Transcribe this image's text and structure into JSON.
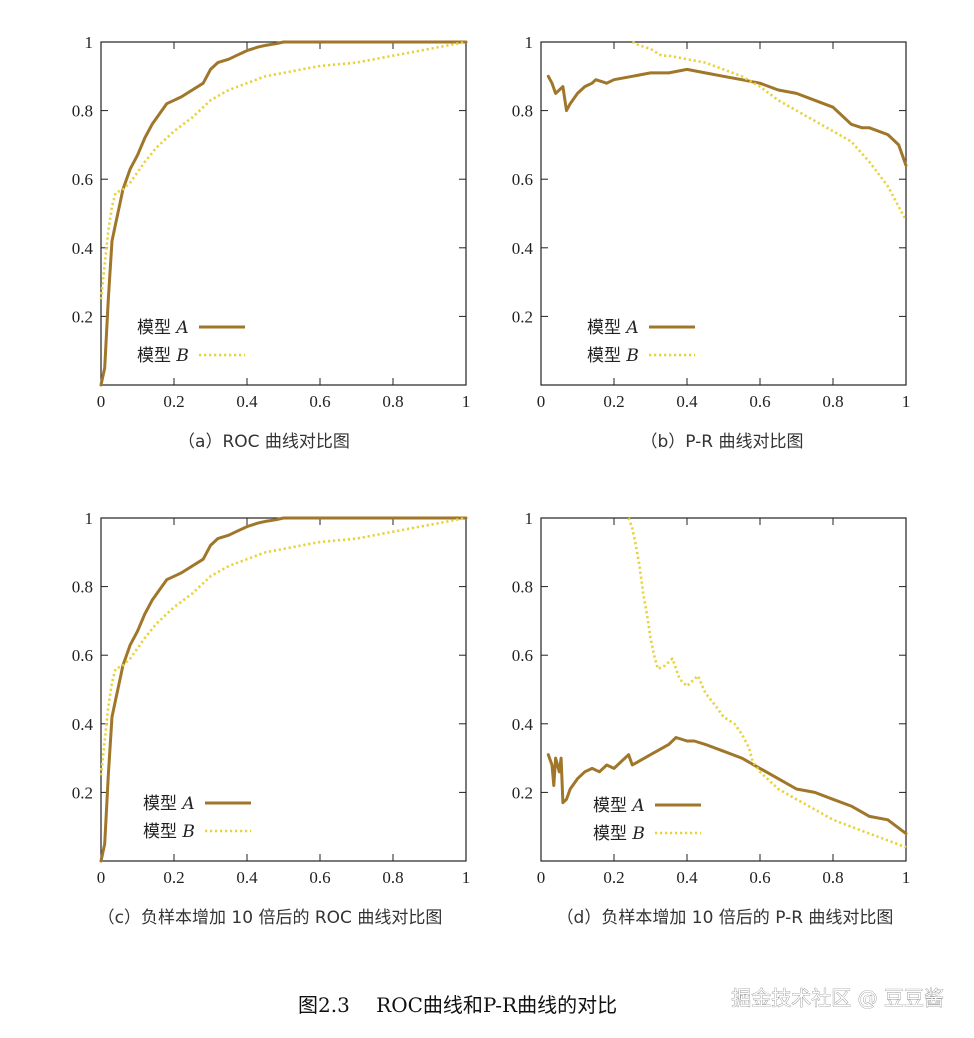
{
  "figure_caption": "图2.3　 ROC曲线和P-R曲线的对比",
  "watermark": "掘金技术社区 @ 豆豆酱",
  "colors": {
    "model_a": "#a0762a",
    "model_b": "#e8d23a",
    "axis": "#222222"
  },
  "chart_data": [
    {
      "type": "line",
      "caption": "（a）ROC 曲线对比图",
      "xlim": [
        0,
        1
      ],
      "ylim": [
        0,
        1
      ],
      "xticks": [
        "0",
        "0.2",
        "0.4",
        "0.6",
        "0.8",
        "1"
      ],
      "yticks": [
        "0.2",
        "0.4",
        "0.6",
        "0.8",
        "1"
      ],
      "legend": {
        "placement": "bottom-left",
        "a_prefix": "模型",
        "a_label": "A",
        "b_prefix": "模型",
        "b_label": "B"
      },
      "series": [
        {
          "name": "模型 A",
          "style": "solid",
          "x": [
            0,
            0.01,
            0.02,
            0.03,
            0.04,
            0.05,
            0.06,
            0.08,
            0.1,
            0.12,
            0.14,
            0.16,
            0.18,
            0.2,
            0.22,
            0.25,
            0.28,
            0.3,
            0.32,
            0.35,
            0.37,
            0.4,
            0.43,
            0.45,
            0.48,
            0.5,
            0.55,
            0.6,
            0.7,
            0.8,
            0.9,
            1.0
          ],
          "y": [
            0,
            0.05,
            0.25,
            0.42,
            0.47,
            0.52,
            0.57,
            0.63,
            0.67,
            0.72,
            0.76,
            0.79,
            0.82,
            0.83,
            0.84,
            0.86,
            0.88,
            0.92,
            0.94,
            0.95,
            0.96,
            0.975,
            0.985,
            0.99,
            0.995,
            1,
            1,
            1,
            1,
            1,
            1,
            1
          ]
        },
        {
          "name": "模型 B",
          "style": "dotted",
          "x": [
            0,
            0.01,
            0.02,
            0.03,
            0.04,
            0.06,
            0.08,
            0.1,
            0.12,
            0.15,
            0.18,
            0.2,
            0.25,
            0.3,
            0.35,
            0.4,
            0.45,
            0.5,
            0.55,
            0.6,
            0.7,
            0.8,
            0.9,
            0.95,
            1.0
          ],
          "y": [
            0.25,
            0.35,
            0.45,
            0.52,
            0.56,
            0.57,
            0.59,
            0.62,
            0.65,
            0.69,
            0.72,
            0.74,
            0.78,
            0.83,
            0.86,
            0.88,
            0.9,
            0.91,
            0.92,
            0.93,
            0.94,
            0.96,
            0.98,
            0.99,
            1
          ]
        }
      ]
    },
    {
      "type": "line",
      "caption": "（b）P-R 曲线对比图",
      "xlim": [
        0,
        1
      ],
      "ylim": [
        0,
        1
      ],
      "xticks": [
        "0",
        "0.2",
        "0.4",
        "0.6",
        "0.8",
        "1"
      ],
      "yticks": [
        "0.2",
        "0.4",
        "0.6",
        "0.8",
        "1"
      ],
      "legend": {
        "placement": "bottom-left",
        "a_prefix": "模型",
        "a_label": "A",
        "b_prefix": "模型",
        "b_label": "B"
      },
      "series": [
        {
          "name": "模型 A",
          "style": "solid",
          "x": [
            0.02,
            0.03,
            0.04,
            0.05,
            0.06,
            0.07,
            0.08,
            0.1,
            0.12,
            0.14,
            0.15,
            0.18,
            0.2,
            0.25,
            0.3,
            0.35,
            0.4,
            0.45,
            0.5,
            0.55,
            0.6,
            0.65,
            0.7,
            0.75,
            0.8,
            0.82,
            0.85,
            0.88,
            0.9,
            0.95,
            0.98,
            1.0
          ],
          "y": [
            0.9,
            0.88,
            0.85,
            0.86,
            0.87,
            0.8,
            0.82,
            0.85,
            0.87,
            0.88,
            0.89,
            0.88,
            0.89,
            0.9,
            0.91,
            0.91,
            0.92,
            0.91,
            0.9,
            0.89,
            0.88,
            0.86,
            0.85,
            0.83,
            0.81,
            0.79,
            0.76,
            0.75,
            0.75,
            0.73,
            0.7,
            0.64
          ]
        },
        {
          "name": "模型 B",
          "style": "dotted",
          "x": [
            0.25,
            0.27,
            0.3,
            0.33,
            0.35,
            0.4,
            0.45,
            0.5,
            0.55,
            0.6,
            0.65,
            0.7,
            0.75,
            0.8,
            0.85,
            0.9,
            0.95,
            1.0
          ],
          "y": [
            1.0,
            0.99,
            0.98,
            0.96,
            0.96,
            0.95,
            0.94,
            0.92,
            0.9,
            0.87,
            0.83,
            0.8,
            0.77,
            0.74,
            0.71,
            0.65,
            0.58,
            0.48
          ]
        }
      ]
    },
    {
      "type": "line",
      "caption": "（c）负样本增加 10 倍后的 ROC 曲线对比图",
      "xlim": [
        0,
        1
      ],
      "ylim": [
        0,
        1
      ],
      "xticks": [
        "0",
        "0.2",
        "0.4",
        "0.6",
        "0.8",
        "1"
      ],
      "yticks": [
        "0.2",
        "0.4",
        "0.6",
        "0.8",
        "1"
      ],
      "legend": {
        "placement": "bottom-left",
        "a_prefix": "模型",
        "a_label": "A",
        "b_prefix": "模型",
        "b_label": "B"
      },
      "series": [
        {
          "name": "模型 A",
          "style": "solid",
          "x": [
            0,
            0.01,
            0.02,
            0.03,
            0.04,
            0.05,
            0.06,
            0.08,
            0.1,
            0.12,
            0.14,
            0.16,
            0.18,
            0.2,
            0.22,
            0.25,
            0.28,
            0.3,
            0.32,
            0.35,
            0.37,
            0.4,
            0.43,
            0.45,
            0.48,
            0.5,
            0.55,
            0.6,
            0.7,
            0.8,
            0.9,
            1.0
          ],
          "y": [
            0,
            0.05,
            0.25,
            0.42,
            0.47,
            0.52,
            0.57,
            0.63,
            0.67,
            0.72,
            0.76,
            0.79,
            0.82,
            0.83,
            0.84,
            0.86,
            0.88,
            0.92,
            0.94,
            0.95,
            0.96,
            0.975,
            0.985,
            0.99,
            0.995,
            1,
            1,
            1,
            1,
            1,
            1,
            1
          ]
        },
        {
          "name": "模型 B",
          "style": "dotted",
          "x": [
            0,
            0.01,
            0.02,
            0.03,
            0.04,
            0.06,
            0.08,
            0.1,
            0.12,
            0.15,
            0.18,
            0.2,
            0.25,
            0.3,
            0.35,
            0.4,
            0.45,
            0.5,
            0.55,
            0.6,
            0.7,
            0.8,
            0.9,
            0.95,
            1.0
          ],
          "y": [
            0.25,
            0.35,
            0.45,
            0.52,
            0.56,
            0.57,
            0.59,
            0.62,
            0.65,
            0.69,
            0.72,
            0.74,
            0.78,
            0.83,
            0.86,
            0.88,
            0.9,
            0.91,
            0.92,
            0.93,
            0.94,
            0.96,
            0.98,
            0.99,
            1
          ]
        }
      ]
    },
    {
      "type": "line",
      "caption": "（d）负样本增加 10 倍后的 P-R 曲线对比图",
      "xlim": [
        0,
        1
      ],
      "ylim": [
        0,
        1
      ],
      "xticks": [
        "0",
        "0.2",
        "0.4",
        "0.6",
        "0.8",
        "1"
      ],
      "yticks": [
        "0.2",
        "0.4",
        "0.6",
        "0.8",
        "1"
      ],
      "legend": {
        "placement": "bottom-left",
        "a_prefix": "模型",
        "a_label": "A",
        "b_prefix": "模型",
        "b_label": "B"
      },
      "series": [
        {
          "name": "模型 A",
          "style": "solid",
          "x": [
            0.02,
            0.03,
            0.035,
            0.04,
            0.05,
            0.055,
            0.06,
            0.07,
            0.08,
            0.1,
            0.12,
            0.14,
            0.16,
            0.18,
            0.2,
            0.22,
            0.24,
            0.25,
            0.3,
            0.35,
            0.37,
            0.4,
            0.42,
            0.45,
            0.5,
            0.55,
            0.6,
            0.65,
            0.7,
            0.75,
            0.8,
            0.85,
            0.9,
            0.95,
            1.0
          ],
          "y": [
            0.31,
            0.28,
            0.22,
            0.3,
            0.26,
            0.3,
            0.17,
            0.18,
            0.21,
            0.24,
            0.26,
            0.27,
            0.26,
            0.28,
            0.27,
            0.29,
            0.31,
            0.28,
            0.31,
            0.34,
            0.36,
            0.35,
            0.35,
            0.34,
            0.32,
            0.3,
            0.27,
            0.24,
            0.21,
            0.2,
            0.18,
            0.16,
            0.13,
            0.12,
            0.08
          ]
        },
        {
          "name": "模型 B",
          "style": "dotted",
          "x": [
            0.24,
            0.25,
            0.26,
            0.27,
            0.28,
            0.29,
            0.3,
            0.31,
            0.32,
            0.34,
            0.36,
            0.38,
            0.4,
            0.42,
            0.43,
            0.45,
            0.48,
            0.5,
            0.53,
            0.55,
            0.57,
            0.58,
            0.6,
            0.65,
            0.7,
            0.75,
            0.8,
            0.85,
            0.9,
            0.95,
            1.0
          ],
          "y": [
            1.0,
            0.97,
            0.92,
            0.86,
            0.78,
            0.72,
            0.65,
            0.6,
            0.56,
            0.57,
            0.59,
            0.53,
            0.51,
            0.53,
            0.54,
            0.49,
            0.45,
            0.42,
            0.4,
            0.37,
            0.33,
            0.29,
            0.26,
            0.21,
            0.18,
            0.15,
            0.12,
            0.1,
            0.08,
            0.06,
            0.04
          ]
        }
      ]
    }
  ]
}
